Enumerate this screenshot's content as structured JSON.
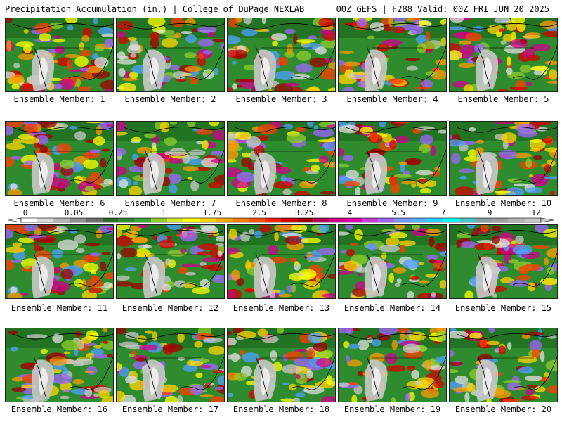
{
  "header": {
    "left": "Precipitation Accumulation (in.) | College of DuPage NEXLAB",
    "right": "00Z GEFS | F288 Valid: 00Z FRI JUN 20 2025"
  },
  "members": [
    "Ensemble Member: 1",
    "Ensemble Member: 2",
    "Ensemble Member: 3",
    "Ensemble Member: 4",
    "Ensemble Member: 5",
    "Ensemble Member: 6",
    "Ensemble Member: 7",
    "Ensemble Member: 8",
    "Ensemble Member: 9",
    "Ensemble Member: 10",
    "Ensemble Member: 11",
    "Ensemble Member: 12",
    "Ensemble Member: 13",
    "Ensemble Member: 14",
    "Ensemble Member: 15",
    "Ensemble Member: 16",
    "Ensemble Member: 17",
    "Ensemble Member: 18",
    "Ensemble Member: 19",
    "Ensemble Member: 20"
  ],
  "colorbar": {
    "tick_labels": [
      "0",
      "0.05",
      "0.25",
      "1",
      "1.75",
      "2.5",
      "3.25",
      "4",
      "5.5",
      "7",
      "9",
      "12"
    ],
    "colors": [
      "#ffffff",
      "#d9d9d9",
      "#b5b5b5",
      "#919191",
      "#6e6e6e",
      "#2a6e2a",
      "#2e8b2e",
      "#3caa32",
      "#8fce2e",
      "#d4e82a",
      "#ffff00",
      "#ffd400",
      "#ffaa00",
      "#ff7f00",
      "#ff5000",
      "#ff1e00",
      "#d40000",
      "#a00000",
      "#b4005a",
      "#d2008c",
      "#e600b4",
      "#c83cdc",
      "#a064ff",
      "#7896ff",
      "#50b4ff",
      "#28d2ff",
      "#00ffff",
      "#46c8c8",
      "#8ca0a0",
      "#a0a0a0",
      "#b4b4b4",
      "#c8c8c8"
    ]
  }
}
